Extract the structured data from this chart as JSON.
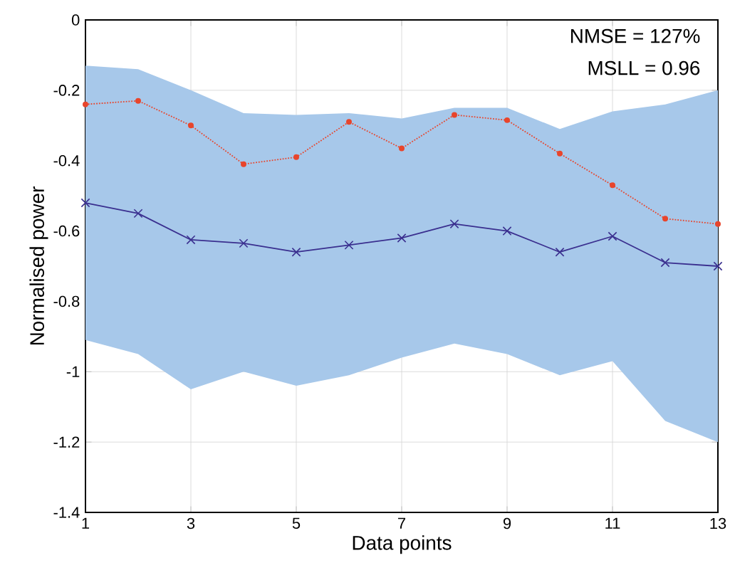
{
  "chart_data": {
    "type": "line",
    "xlabel": "Data points",
    "ylabel": "Normalised power",
    "annotations": [
      "NMSE = 127%",
      "MSLL = 0.96"
    ],
    "x": [
      1,
      2,
      3,
      4,
      5,
      6,
      7,
      8,
      9,
      10,
      11,
      12,
      13
    ],
    "series": [
      {
        "color": "#e8452c",
        "marker": "circle",
        "line_style": "dotted",
        "values": [
          -0.24,
          -0.23,
          -0.3,
          -0.41,
          -0.39,
          -0.29,
          -0.365,
          -0.27,
          -0.285,
          -0.38,
          -0.47,
          -0.565,
          -0.58
        ]
      },
      {
        "color": "#3a2f8f",
        "marker": "cross",
        "line_style": "solid",
        "values": [
          -0.52,
          -0.55,
          -0.625,
          -0.635,
          -0.66,
          -0.64,
          -0.62,
          -0.58,
          -0.6,
          -0.66,
          -0.615,
          -0.69,
          -0.7
        ],
        "lower": [
          -0.91,
          -0.95,
          -1.05,
          -1.0,
          -1.04,
          -1.01,
          -0.96,
          -0.92,
          -0.95,
          -1.01,
          -0.97,
          -1.14,
          -1.2
        ],
        "upper": [
          -0.13,
          -0.14,
          -0.2,
          -0.265,
          -0.27,
          -0.265,
          -0.28,
          -0.25,
          -0.25,
          -0.31,
          -0.26,
          -0.24,
          -0.2
        ]
      }
    ],
    "xlim": [
      1,
      13
    ],
    "xticks": [
      1,
      3,
      5,
      7,
      9,
      11,
      13
    ],
    "ylim": [
      -1.4,
      0
    ],
    "yticks": [
      -1.4,
      -1.2,
      -1,
      -0.8,
      -0.6,
      -0.4,
      -0.2,
      0
    ],
    "grid": true
  }
}
